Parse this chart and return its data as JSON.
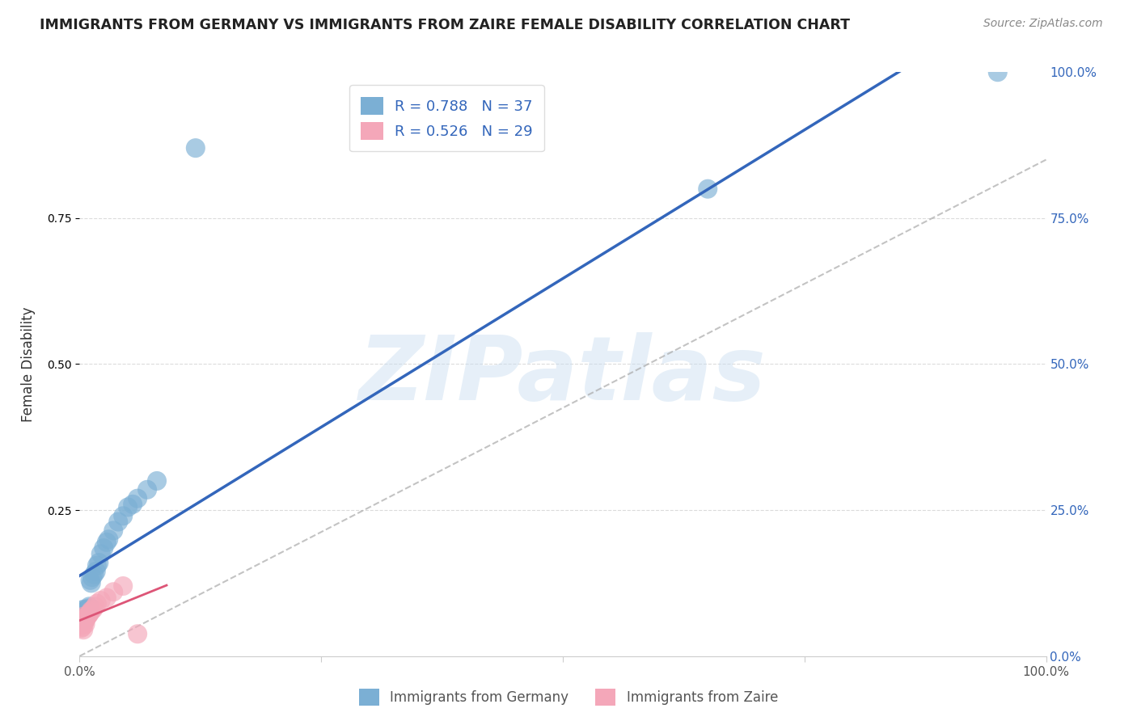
{
  "title": "IMMIGRANTS FROM GERMANY VS IMMIGRANTS FROM ZAIRE FEMALE DISABILITY CORRELATION CHART",
  "source": "Source: ZipAtlas.com",
  "ylabel": "Female Disability",
  "watermark": "ZIPatlas",
  "xlim": [
    0,
    1
  ],
  "ylim": [
    0,
    1
  ],
  "xtick_labels": [
    "0.0%",
    "",
    "",
    "",
    "100.0%"
  ],
  "xtick_vals": [
    0,
    0.25,
    0.5,
    0.75,
    1.0
  ],
  "ytick_labels": [
    "100.0%",
    "75.0%",
    "50.0%",
    "25.0%",
    "0.0%"
  ],
  "ytick_vals": [
    1.0,
    0.75,
    0.5,
    0.25,
    0.0
  ],
  "germany_color": "#7bafd4",
  "zaire_color": "#f4a7b9",
  "germany_R": 0.788,
  "germany_N": 37,
  "zaire_R": 0.526,
  "zaire_N": 29,
  "germany_line_color": "#3366bb",
  "zaire_line_color": "#dd5577",
  "background_color": "#ffffff",
  "grid_color": "#cccccc",
  "germany_scatter_x": [
    0.001,
    0.002,
    0.002,
    0.003,
    0.003,
    0.004,
    0.004,
    0.005,
    0.005,
    0.006,
    0.006,
    0.007,
    0.008,
    0.009,
    0.01,
    0.011,
    0.012,
    0.013,
    0.015,
    0.017,
    0.018,
    0.02,
    0.022,
    0.025,
    0.028,
    0.03,
    0.035,
    0.04,
    0.045,
    0.05,
    0.055,
    0.06,
    0.07,
    0.08,
    0.12,
    0.65,
    0.95
  ],
  "germany_scatter_y": [
    0.075,
    0.068,
    0.078,
    0.07,
    0.072,
    0.065,
    0.08,
    0.062,
    0.068,
    0.07,
    0.075,
    0.078,
    0.08,
    0.082,
    0.085,
    0.13,
    0.125,
    0.135,
    0.14,
    0.145,
    0.155,
    0.16,
    0.175,
    0.185,
    0.195,
    0.2,
    0.215,
    0.23,
    0.24,
    0.255,
    0.26,
    0.27,
    0.285,
    0.3,
    0.87,
    0.8,
    1.0
  ],
  "zaire_scatter_x": [
    0.001,
    0.001,
    0.001,
    0.002,
    0.002,
    0.002,
    0.003,
    0.003,
    0.003,
    0.004,
    0.004,
    0.005,
    0.005,
    0.006,
    0.006,
    0.007,
    0.008,
    0.009,
    0.01,
    0.011,
    0.012,
    0.014,
    0.016,
    0.018,
    0.022,
    0.028,
    0.035,
    0.045,
    0.06
  ],
  "zaire_scatter_y": [
    0.055,
    0.06,
    0.052,
    0.058,
    0.062,
    0.048,
    0.065,
    0.055,
    0.05,
    0.068,
    0.045,
    0.06,
    0.058,
    0.062,
    0.055,
    0.065,
    0.068,
    0.07,
    0.072,
    0.075,
    0.078,
    0.08,
    0.085,
    0.09,
    0.095,
    0.1,
    0.11,
    0.12,
    0.038
  ],
  "legend_germany_label": "Immigrants from Germany",
  "legend_zaire_label": "Immigrants from Zaire"
}
